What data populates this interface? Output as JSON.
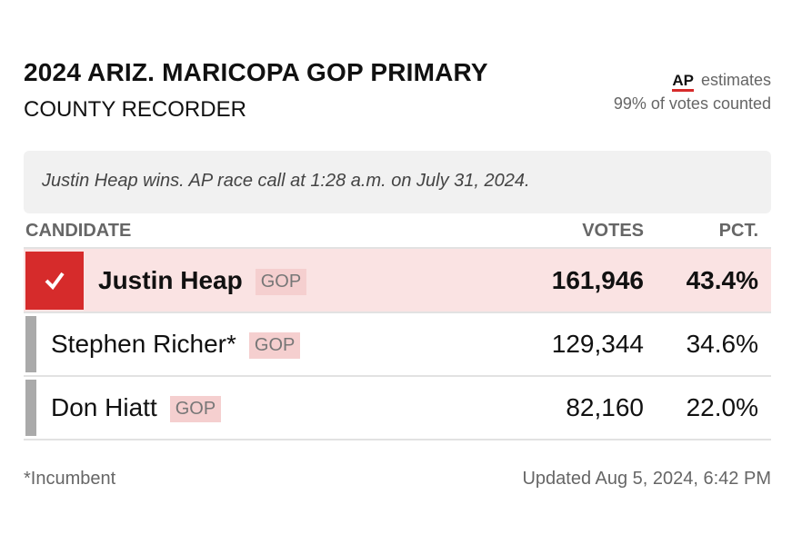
{
  "header": {
    "title": "2024 ARIZ. MARICOPA GOP PRIMARY",
    "subtitle": "COUNTY RECORDER",
    "source": "AP",
    "estimates": "estimates",
    "counted": "99% of votes counted"
  },
  "call": "Justin Heap wins. AP race call at 1:28 a.m. on July 31, 2024.",
  "table": {
    "columns": [
      "CANDIDATE",
      "VOTES",
      "PCT."
    ],
    "rows": [
      {
        "name": "Justin Heap",
        "party": "GOP",
        "votes": "161,946",
        "pct": "43.4%",
        "winner": true
      },
      {
        "name": "Stephen Richer*",
        "party": "GOP",
        "votes": "129,344",
        "pct": "34.6%",
        "winner": false
      },
      {
        "name": "Don Hiatt",
        "party": "GOP",
        "votes": "82,160",
        "pct": "22.0%",
        "winner": false
      }
    ]
  },
  "footer": {
    "note": "*Incumbent",
    "updated": "Updated Aug 5, 2024, 6:42 PM"
  }
}
